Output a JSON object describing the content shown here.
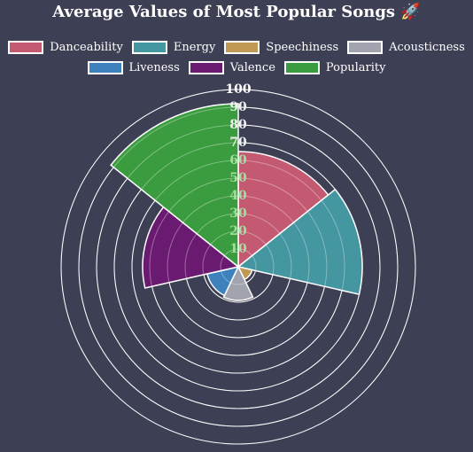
{
  "chart_data": {
    "type": "polar-area",
    "title": "Average Values of Most Popular Songs 🚀",
    "legend_placement": "top",
    "grid": true,
    "r_range": [
      0,
      100
    ],
    "r_ticks": [
      10,
      20,
      30,
      40,
      50,
      60,
      70,
      80,
      90,
      100
    ],
    "categories": [
      "Danceability",
      "Energy",
      "Speechiness",
      "Acousticness",
      "Liveness",
      "Valence",
      "Popularity"
    ],
    "values": [
      65,
      70,
      8,
      19,
      18,
      54,
      92
    ],
    "colors": [
      "#c45a72",
      "#4496a0",
      "#c09a55",
      "#a1a3ae",
      "#3d81bd",
      "#6a1a70",
      "#3a9c3e"
    ]
  }
}
